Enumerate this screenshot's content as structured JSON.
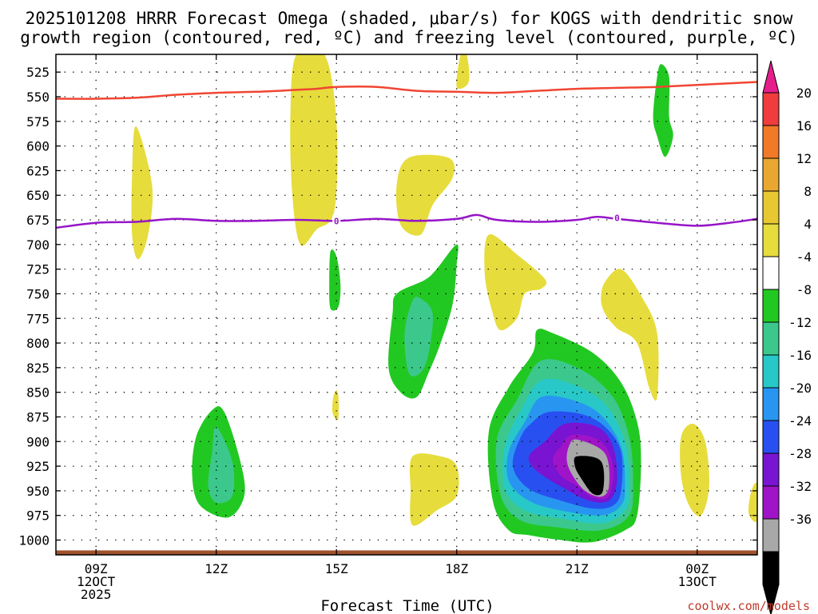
{
  "chart_data": {
    "type": "heatmap",
    "title_lines": [
      "2025101208 HRRR Forecast Omega (shaded, μbar/s) for KOGS with dendritic snow",
      "growth region (contoured, red, ºC) and freezing level (contoured, purple, ºC)"
    ],
    "xlabel": "Forecast Time (UTC)",
    "credit": "coolwx.com/models",
    "x_range_hours": [
      8.0,
      25.5
    ],
    "y_range_hpa": [
      1015,
      507
    ],
    "x_ticks": [
      {
        "hour": 9,
        "lines": [
          "09Z",
          "12OCT",
          "2025"
        ]
      },
      {
        "hour": 12,
        "lines": [
          "12Z"
        ]
      },
      {
        "hour": 15,
        "lines": [
          "15Z"
        ]
      },
      {
        "hour": 18,
        "lines": [
          "18Z"
        ]
      },
      {
        "hour": 21,
        "lines": [
          "21Z"
        ]
      },
      {
        "hour": 24,
        "lines": [
          "00Z",
          "13OCT"
        ]
      }
    ],
    "y_ticks": [
      525,
      550,
      575,
      600,
      625,
      650,
      675,
      700,
      725,
      750,
      775,
      800,
      825,
      850,
      875,
      900,
      925,
      950,
      975,
      1000
    ],
    "colorbar": {
      "labels": [
        "20",
        "16",
        "12",
        "8",
        "4",
        "-4",
        "-8",
        "-12",
        "-16",
        "-20",
        "-24",
        "-28",
        "-32",
        "-36"
      ],
      "colors": [
        "#f03c3c",
        "#f07a28",
        "#e8a830",
        "#e8c832",
        "#e6dc3c",
        "#ffffff",
        "#22c822",
        "#3cc88c",
        "#28c8c8",
        "#2896f0",
        "#2850f0",
        "#7814d2",
        "#a014c8",
        "#a8a8a8",
        "#000000"
      ],
      "top_arrow_color": "#e61e8c",
      "bottom_arrow_color": "#000000"
    },
    "omega_levels": [
      {
        "upper": -4,
        "color": "#22c822"
      },
      {
        "upper": -8,
        "color": "#3cc88c"
      },
      {
        "upper": -12,
        "color": "#28c8c8"
      },
      {
        "upper": -16,
        "color": "#2896f0"
      },
      {
        "upper": -20,
        "color": "#2850f0"
      },
      {
        "upper": -24,
        "color": "#7814d2"
      },
      {
        "upper": -28,
        "color": "#a014c8"
      },
      {
        "upper": -32,
        "color": "#a8a8a8"
      },
      {
        "upper": -36,
        "color": "#000000"
      }
    ],
    "positive_color": "#e6dc3c",
    "omega_features": [
      {
        "sign": "pos",
        "min_level": 4,
        "points": [
          [
            10.0,
            580
          ],
          [
            10.4,
            640
          ],
          [
            10.3,
            690
          ],
          [
            10.05,
            715
          ],
          [
            9.9,
            690
          ],
          [
            9.9,
            630
          ]
        ]
      },
      {
        "sign": "pos",
        "min_level": 4,
        "points": [
          [
            14.0,
            507
          ],
          [
            14.7,
            507
          ],
          [
            15.0,
            575
          ],
          [
            14.95,
            665
          ],
          [
            14.5,
            685
          ],
          [
            14.1,
            700
          ],
          [
            13.9,
            650
          ],
          [
            13.85,
            570
          ]
        ]
      },
      {
        "sign": "pos",
        "min_level": 4,
        "points": [
          [
            18.1,
            507
          ],
          [
            18.25,
            507
          ],
          [
            18.3,
            535
          ],
          [
            18.0,
            540
          ]
        ]
      },
      {
        "sign": "pos",
        "min_level": 4,
        "points": [
          [
            16.8,
            612
          ],
          [
            17.8,
            612
          ],
          [
            17.9,
            632
          ],
          [
            17.4,
            660
          ],
          [
            17.1,
            690
          ],
          [
            16.6,
            680
          ],
          [
            16.5,
            640
          ]
        ]
      },
      {
        "sign": "pos",
        "min_level": 4,
        "points": [
          [
            18.8,
            690
          ],
          [
            19.5,
            710
          ],
          [
            20.2,
            735
          ],
          [
            20.1,
            745
          ],
          [
            19.7,
            750
          ],
          [
            19.5,
            775
          ],
          [
            19.1,
            787
          ],
          [
            18.9,
            770
          ],
          [
            18.7,
            730
          ]
        ]
      },
      {
        "sign": "pos",
        "min_level": 4,
        "points": [
          [
            21.7,
            738
          ],
          [
            22.1,
            725
          ],
          [
            22.6,
            752
          ],
          [
            23.0,
            790
          ],
          [
            23.0,
            855
          ],
          [
            22.8,
            845
          ],
          [
            22.5,
            800
          ],
          [
            22.0,
            785
          ],
          [
            21.7,
            770
          ],
          [
            21.6,
            755
          ]
        ]
      },
      {
        "sign": "pos",
        "min_level": 4,
        "points": [
          [
            15.0,
            848
          ],
          [
            15.05,
            855
          ],
          [
            15.05,
            875
          ],
          [
            15.0,
            878
          ],
          [
            14.9,
            870
          ],
          [
            14.92,
            855
          ]
        ]
      },
      {
        "sign": "pos",
        "min_level": 4,
        "points": [
          [
            16.9,
            915
          ],
          [
            17.6,
            915
          ],
          [
            18.0,
            925
          ],
          [
            18.0,
            955
          ],
          [
            17.5,
            970
          ],
          [
            16.9,
            985
          ],
          [
            16.85,
            950
          ]
        ]
      },
      {
        "sign": "pos",
        "min_level": 4,
        "points": [
          [
            23.6,
            895
          ],
          [
            23.9,
            882
          ],
          [
            24.2,
            900
          ],
          [
            24.3,
            945
          ],
          [
            24.1,
            975
          ],
          [
            23.8,
            965
          ],
          [
            23.6,
            935
          ]
        ]
      },
      {
        "sign": "pos",
        "min_level": 4,
        "points": [
          [
            25.4,
            945
          ],
          [
            25.5,
            945
          ],
          [
            25.5,
            980
          ],
          [
            25.3,
            975
          ],
          [
            25.3,
            960
          ]
        ]
      },
      {
        "sign": "neg",
        "min_level": -4,
        "points": [
          [
            23.1,
            517
          ],
          [
            23.3,
            530
          ],
          [
            23.3,
            570
          ],
          [
            23.4,
            590
          ],
          [
            23.2,
            611
          ],
          [
            23.0,
            590
          ],
          [
            22.9,
            570
          ],
          [
            23.0,
            530
          ]
        ]
      },
      {
        "sign": "neg",
        "min_level": -4,
        "points": [
          [
            14.85,
            707
          ],
          [
            15.0,
            712
          ],
          [
            15.1,
            740
          ],
          [
            15.05,
            763
          ],
          [
            14.85,
            765
          ],
          [
            14.82,
            740
          ]
        ]
      },
      {
        "sign": "neg",
        "min_level": -4,
        "points": [
          [
            16.5,
            750
          ],
          [
            17.2,
            736
          ],
          [
            17.5,
            725
          ],
          [
            18.0,
            700
          ],
          [
            18.0,
            720
          ],
          [
            17.9,
            760
          ],
          [
            17.6,
            800
          ],
          [
            17.3,
            830
          ],
          [
            17.0,
            855
          ],
          [
            16.6,
            850
          ],
          [
            16.3,
            825
          ],
          [
            16.4,
            770
          ]
        ]
      },
      {
        "sign": "neg",
        "min_level": -8,
        "points": [
          [
            16.9,
            757
          ],
          [
            17.1,
            755
          ],
          [
            17.4,
            770
          ],
          [
            17.3,
            810
          ],
          [
            17.1,
            830
          ],
          [
            16.8,
            830
          ],
          [
            16.7,
            790
          ]
        ]
      },
      {
        "sign": "neg",
        "min_level": -4,
        "points": [
          [
            11.9,
            868
          ],
          [
            12.2,
            870
          ],
          [
            12.6,
            920
          ],
          [
            12.7,
            955
          ],
          [
            12.3,
            977
          ],
          [
            11.6,
            965
          ],
          [
            11.4,
            935
          ],
          [
            11.5,
            895
          ]
        ]
      },
      {
        "sign": "neg",
        "min_level": -8,
        "points": [
          [
            12.0,
            885
          ],
          [
            12.4,
            920
          ],
          [
            12.4,
            955
          ],
          [
            12.0,
            962
          ],
          [
            11.8,
            945
          ],
          [
            11.9,
            910
          ]
        ]
      },
      {
        "sign": "neg",
        "min_level": -4,
        "points": [
          [
            20.0,
            787
          ],
          [
            20.4,
            790
          ],
          [
            21.4,
            810
          ],
          [
            22.1,
            840
          ],
          [
            22.5,
            880
          ],
          [
            22.6,
            920
          ],
          [
            22.5,
            975
          ],
          [
            22.2,
            990
          ],
          [
            21.4,
            1002
          ],
          [
            20.6,
            1000
          ],
          [
            19.8,
            995
          ],
          [
            19.3,
            990
          ],
          [
            18.9,
            960
          ],
          [
            18.8,
            890
          ],
          [
            19.3,
            845
          ],
          [
            19.9,
            810
          ]
        ]
      },
      {
        "sign": "neg",
        "min_level": -8,
        "points": [
          [
            20.1,
            818
          ],
          [
            21.1,
            827
          ],
          [
            21.9,
            855
          ],
          [
            22.3,
            895
          ],
          [
            22.4,
            940
          ],
          [
            22.3,
            975
          ],
          [
            21.6,
            990
          ],
          [
            20.5,
            987
          ],
          [
            19.6,
            980
          ],
          [
            19.1,
            955
          ],
          [
            19.0,
            898
          ],
          [
            19.5,
            858
          ]
        ]
      },
      {
        "sign": "neg",
        "min_level": -12,
        "points": [
          [
            20.1,
            838
          ],
          [
            20.9,
            842
          ],
          [
            21.7,
            862
          ],
          [
            22.2,
            900
          ],
          [
            22.3,
            945
          ],
          [
            22.2,
            970
          ],
          [
            21.6,
            983
          ],
          [
            20.6,
            978
          ],
          [
            19.7,
            970
          ],
          [
            19.2,
            948
          ],
          [
            19.2,
            905
          ],
          [
            19.6,
            868
          ]
        ]
      },
      {
        "sign": "neg",
        "min_level": -16,
        "points": [
          [
            20.1,
            855
          ],
          [
            20.9,
            858
          ],
          [
            21.6,
            873
          ],
          [
            22.1,
            905
          ],
          [
            22.2,
            945
          ],
          [
            22.1,
            965
          ],
          [
            21.6,
            975
          ],
          [
            20.6,
            970
          ],
          [
            19.8,
            960
          ],
          [
            19.3,
            940
          ],
          [
            19.3,
            910
          ],
          [
            19.7,
            880
          ]
        ]
      },
      {
        "sign": "neg",
        "min_level": -20,
        "points": [
          [
            20.3,
            870
          ],
          [
            21.1,
            872
          ],
          [
            21.7,
            885
          ],
          [
            22.1,
            910
          ],
          [
            22.1,
            950
          ],
          [
            21.9,
            965
          ],
          [
            21.4,
            968
          ],
          [
            20.6,
            960
          ],
          [
            19.8,
            948
          ],
          [
            19.4,
            925
          ],
          [
            19.6,
            895
          ],
          [
            19.9,
            880
          ]
        ]
      },
      {
        "sign": "neg",
        "min_level": -24,
        "points": [
          [
            20.7,
            882
          ],
          [
            21.5,
            885
          ],
          [
            21.9,
            905
          ],
          [
            22.0,
            940
          ],
          [
            21.8,
            960
          ],
          [
            21.3,
            960
          ],
          [
            20.7,
            948
          ],
          [
            20.0,
            930
          ],
          [
            19.8,
            915
          ],
          [
            20.2,
            900
          ]
        ]
      },
      {
        "sign": "neg",
        "min_level": -28,
        "points": [
          [
            20.9,
            893
          ],
          [
            21.6,
            900
          ],
          [
            21.9,
            925
          ],
          [
            21.8,
            955
          ],
          [
            21.4,
            957
          ],
          [
            21.0,
            945
          ],
          [
            20.6,
            935
          ],
          [
            20.4,
            918
          ],
          [
            20.6,
            905
          ]
        ]
      },
      {
        "sign": "neg",
        "min_level": -32,
        "points": [
          [
            21.0,
            898
          ],
          [
            21.7,
            912
          ],
          [
            21.8,
            945
          ],
          [
            21.6,
            956
          ],
          [
            21.2,
            950
          ],
          [
            20.9,
            935
          ],
          [
            20.75,
            920
          ],
          [
            20.8,
            905
          ]
        ]
      },
      {
        "sign": "neg",
        "min_level": -36,
        "points": [
          [
            21.0,
            915
          ],
          [
            21.6,
            920
          ],
          [
            21.65,
            950
          ],
          [
            21.4,
            953
          ],
          [
            21.1,
            937
          ],
          [
            20.95,
            925
          ]
        ]
      }
    ],
    "dendritic_contour": {
      "color": "#f04632",
      "points": [
        [
          8.0,
          552
        ],
        [
          9.0,
          552
        ],
        [
          10.0,
          551
        ],
        [
          11.0,
          548
        ],
        [
          12.0,
          546
        ],
        [
          13.0,
          545
        ],
        [
          14.0,
          543
        ],
        [
          14.5,
          542
        ],
        [
          15.0,
          540
        ],
        [
          16.0,
          540
        ],
        [
          17.0,
          544
        ],
        [
          18.0,
          545
        ],
        [
          19.0,
          546
        ],
        [
          20.0,
          544
        ],
        [
          21.0,
          542
        ],
        [
          22.0,
          541
        ],
        [
          23.0,
          540
        ],
        [
          24.0,
          538
        ],
        [
          25.0,
          536
        ],
        [
          25.5,
          535
        ]
      ]
    },
    "freezing_contour": {
      "color": "#9614c8",
      "points": [
        [
          8.0,
          683
        ],
        [
          9.0,
          678
        ],
        [
          10.0,
          677
        ],
        [
          11.0,
          674
        ],
        [
          12.0,
          676
        ],
        [
          13.0,
          676
        ],
        [
          14.0,
          675
        ],
        [
          15.0,
          676
        ],
        [
          16.0,
          674
        ],
        [
          17.0,
          676
        ],
        [
          18.0,
          674
        ],
        [
          18.5,
          670
        ],
        [
          19.0,
          675
        ],
        [
          20.0,
          677
        ],
        [
          21.0,
          675
        ],
        [
          21.5,
          672
        ],
        [
          22.0,
          674
        ],
        [
          23.0,
          678
        ],
        [
          24.0,
          681
        ],
        [
          24.8,
          678
        ],
        [
          25.5,
          674
        ]
      ],
      "labels": [
        {
          "hour": 15.0,
          "hpa": 676,
          "text": "0"
        },
        {
          "hour": 22.0,
          "hpa": 673,
          "text": "0"
        }
      ]
    },
    "ground_color": "#a0522d"
  }
}
